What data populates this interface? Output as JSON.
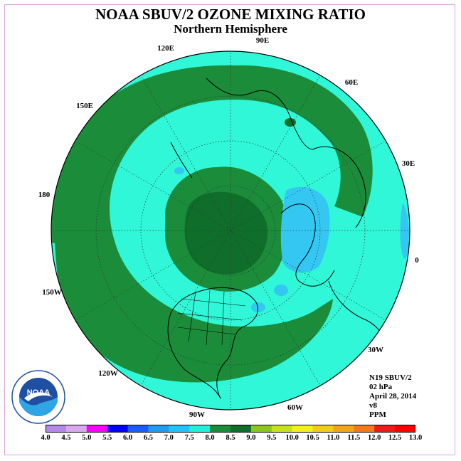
{
  "title": "NOAA SBUV/2 OZONE MIXING RATIO",
  "subtitle": "Northern Hemisphere",
  "info": {
    "satellite": "N19 SBUV/2",
    "pressure": "02 hPa",
    "date": "April 28, 2014",
    "version": "v8",
    "units": "PPM"
  },
  "longitude_labels": [
    "90E",
    "60E",
    "30E",
    "0",
    "30W",
    "60W",
    "90W",
    "120W",
    "150W",
    "180",
    "150E",
    "120E"
  ],
  "colorbar": {
    "ticks": [
      "4.0",
      "4.5",
      "5.0",
      "5.5",
      "6.0",
      "6.5",
      "7.0",
      "7.5",
      "8.0",
      "8.5",
      "9.0",
      "9.5",
      "10.0",
      "10.5",
      "11.0",
      "11.5",
      "12.0",
      "12.5",
      "13.0"
    ],
    "colors": [
      "#b388e8",
      "#d9a8ee",
      "#ff00ff",
      "#0000ff",
      "#1a5cff",
      "#1f9cf2",
      "#1fc4ff",
      "#1ff0d8",
      "#1a8c3a",
      "#0f6e2a",
      "#8cc61a",
      "#c6e21a",
      "#f2f21a",
      "#f2cc1a",
      "#f2a51a",
      "#f27a1a",
      "#ee1a1a",
      "#ff0000",
      "#7a4a2a"
    ]
  },
  "colors": {
    "ring_fill": "#1fd9c0",
    "light_fill": "#2ff7d7",
    "green": "#1a8c3a",
    "dark_green": "#0f6e2a",
    "blue": "#33c7f2"
  },
  "logo_text": "NOAA"
}
